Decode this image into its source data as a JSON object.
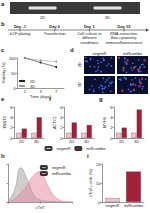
{
  "gel": {
    "title": "a",
    "lanes": [
      "2D",
      "3D"
    ]
  },
  "timeline": {
    "title": "b",
    "steps": [
      {
        "day": "Day -1",
        "text": "hCF plating"
      },
      {
        "day": "Day 0",
        "text": "Transfection"
      },
      {
        "day": "Day 1",
        "text": "Cell culture in different conditions"
      },
      {
        "day": "Day 15",
        "text": "RNA extraction, flow cytometry, immunofluorescence"
      }
    ]
  },
  "images": {
    "title": "d",
    "columns": [
      "negmiR",
      "miRcombo"
    ],
    "rows": [
      "2D",
      "3D"
    ]
  },
  "chart_data": [
    {
      "type": "line",
      "title": "c",
      "categories": [
        "1",
        "3",
        "7"
      ],
      "series": [
        {
          "name": "2D",
          "color": "#222222",
          "values": [
            100,
            85,
            70
          ]
        },
        {
          "name": "3D",
          "color": "#999999",
          "values": [
            100,
            92,
            88
          ]
        }
      ],
      "xlabel": "Time (days)",
      "ylabel": "Viability (%)",
      "ylim": [
        0,
        100
      ],
      "yticks": [
        0,
        50,
        100
      ],
      "legend": "bottom-left"
    },
    {
      "type": "bar",
      "title": "e",
      "categories": [
        "2D",
        "3D"
      ],
      "series": [
        {
          "name": "negmiR",
          "color": "#f2c4ce",
          "values": [
            1,
            1
          ]
        },
        {
          "name": "miRcombo",
          "color": "#a3203a",
          "values": [
            1.8,
            4
          ]
        }
      ],
      "ylabel": "TNNT2",
      "ylim": [
        0,
        6
      ],
      "yticks": [
        0,
        2,
        4,
        6
      ],
      "legend": "bottom"
    },
    {
      "type": "bar",
      "title": "f",
      "categories": [
        "2D",
        "3D"
      ],
      "series": [
        {
          "name": "negmiR",
          "color": "#f2c4ce",
          "values": [
            1,
            1
          ]
        },
        {
          "name": "miRcombo",
          "color": "#a3203a",
          "values": [
            3,
            2.5
          ]
        }
      ],
      "ylabel": "ACTC1",
      "ylim": [
        0,
        6
      ],
      "yticks": [
        0,
        2,
        4,
        6
      ]
    },
    {
      "type": "bar",
      "title": "g",
      "categories": [
        "2D",
        "3D"
      ],
      "series": [
        {
          "name": "negmiR",
          "color": "#f2c4ce",
          "values": [
            1,
            1
          ]
        },
        {
          "name": "miRcombo",
          "color": "#a3203a",
          "values": [
            2,
            5.5
          ]
        }
      ],
      "ylabel": "MYH6",
      "ylim": [
        0,
        6
      ],
      "yticks": [
        0,
        2,
        4,
        6
      ]
    },
    {
      "type": "histogram",
      "title": "h",
      "x": [
        0,
        1,
        2,
        3,
        4,
        5,
        6,
        7,
        8,
        9,
        10
      ],
      "series": [
        {
          "name": "negmiR",
          "color": "#9e9e9e",
          "values": [
            2,
            30,
            90,
            60,
            20,
            6,
            2,
            1,
            0,
            0,
            0
          ]
        },
        {
          "name": "miRcombo",
          "color": "#e8869f",
          "values": [
            1,
            8,
            25,
            45,
            70,
            80,
            50,
            20,
            6,
            1,
            0
          ]
        }
      ],
      "xlabel": "cTnT",
      "xlim": [
        0,
        10
      ],
      "xticks": [
        0,
        5,
        10
      ],
      "ylim": [
        0,
        100
      ],
      "yticks": [
        0,
        50,
        100
      ],
      "tick_labels": false,
      "legend": "top-right"
    },
    {
      "type": "bar",
      "title": "i",
      "categories": [
        "negmiR",
        "miRcombo"
      ],
      "values": [
        2,
        16
      ],
      "colors": [
        "#f2c4ce",
        "#a3203a"
      ],
      "ylabel": "cTnT+ cells (%)",
      "ylim": [
        0,
        20
      ],
      "yticks": [
        0,
        10,
        20
      ]
    }
  ]
}
